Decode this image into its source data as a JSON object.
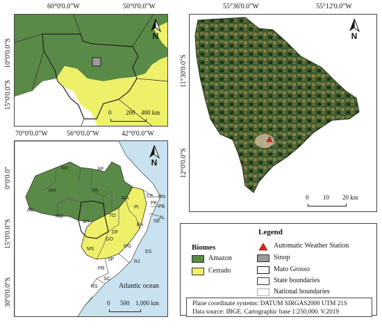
{
  "inset_top": {
    "lon_labels": [
      "60°0'0.0\"W",
      "50°0'0.0\"W"
    ],
    "lat_labels": [
      "10°0'0.0\"S",
      "15°0'0.0\"S"
    ],
    "north": "N",
    "scale": {
      "ticks": [
        "0",
        "200",
        "400 km"
      ]
    }
  },
  "inset_bottom": {
    "lon_labels": [
      "70°0'0.0\"W",
      "56°0'0.0\"W",
      "42°0'0.0\"W"
    ],
    "lat_labels": [
      "0°0'0.0\"",
      "15°0'0.0\"S",
      "30°0'0.0\"S"
    ],
    "north": "N",
    "scale": {
      "ticks": [
        "0",
        "500",
        "1,000 km"
      ]
    },
    "ocean_label": "Atlantic ocean",
    "states": [
      "RR",
      "AP",
      "AM",
      "PA",
      "AC",
      "RO",
      "MT",
      "TO",
      "MA",
      "PI",
      "CE",
      "RN",
      "PB",
      "PE",
      "AL",
      "SE",
      "BA",
      "DF",
      "GO",
      "MG",
      "MS",
      "SP",
      "ES",
      "RJ",
      "PR",
      "SC",
      "RS"
    ]
  },
  "main_map": {
    "lon_labels": [
      "55°36'0.0\"W",
      "55°12'0.0\"W"
    ],
    "lat_labels": [
      "11°30'0.0\"S",
      "12°0'0.0\"S"
    ],
    "north": "N",
    "scale": {
      "ticks": [
        "0",
        "10",
        "20 km"
      ]
    }
  },
  "biomes": {
    "title": "Biomes",
    "items": [
      {
        "label": "Amazon",
        "color": "#5a8a47"
      },
      {
        "label": "Cerrado",
        "color": "#eef06a"
      }
    ]
  },
  "legend": {
    "title": "Legend",
    "items": [
      {
        "label": "Automatic Weather Station",
        "icon": "red-triangle"
      },
      {
        "label": "Sinop",
        "icon": "gray-box"
      },
      {
        "label": "Mato Grosso",
        "icon": "white-box"
      },
      {
        "label": "State boundaries",
        "icon": "white-box"
      },
      {
        "label": "National boundaries",
        "icon": "white-box"
      }
    ]
  },
  "info": {
    "line1": "Plane coordinate systems: DATUM SIRGAS2000 UTM 21S",
    "line2": "Data source: IBGE. Cartographic base 1:250,000. V.2019"
  }
}
